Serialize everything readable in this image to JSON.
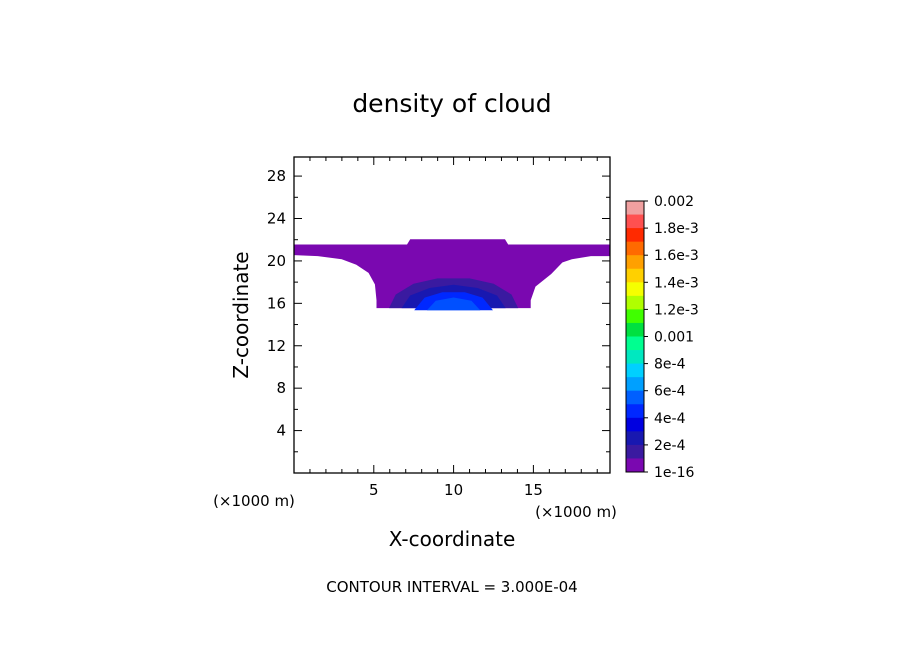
{
  "chart_data": {
    "type": "contour",
    "title": "density of cloud",
    "xlabel": "X-coordinate",
    "ylabel": "Z-coordinate",
    "x_unit": "(×1000 m)",
    "y_unit": "(×1000 m)",
    "xlim": [
      0,
      19.8
    ],
    "ylim": [
      0,
      29.8
    ],
    "x_ticks": [
      5,
      10,
      15
    ],
    "y_ticks": [
      4,
      8,
      12,
      16,
      20,
      24,
      28
    ],
    "footer": "CONTOUR INTERVAL = 3.000E-04",
    "colorbar": {
      "labels": [
        "0.002",
        "1.8e-3",
        "1.6e-3",
        "1.4e-3",
        "1.2e-3",
        "0.001",
        "8e-4",
        "6e-4",
        "4e-4",
        "2e-4",
        "1e-16"
      ],
      "colors": [
        "#f0a0a0",
        "#ff5050",
        "#ff2a00",
        "#ff6a00",
        "#ffa000",
        "#ffd000",
        "#f5ff00",
        "#b0ff00",
        "#40ff00",
        "#00e040",
        "#00ff90",
        "#00e8c0",
        "#00d0ff",
        "#00a0ff",
        "#0060ff",
        "#0028ff",
        "#0000e0",
        "#1818b0",
        "#3a1aa0",
        "#7a08b0"
      ]
    },
    "regions": [
      {
        "name": "outer",
        "level": "1e-16",
        "color": "#7a08b0",
        "outline": [
          [
            0,
            21.5
          ],
          [
            7.1,
            21.5
          ],
          [
            7.3,
            22.0
          ],
          [
            13.2,
            22.0
          ],
          [
            13.4,
            21.5
          ],
          [
            19.8,
            21.5
          ],
          [
            19.8,
            20.5
          ],
          [
            18.6,
            20.5
          ],
          [
            17.4,
            20.2
          ],
          [
            16.8,
            19.9
          ],
          [
            16.1,
            18.8
          ],
          [
            15.1,
            17.6
          ],
          [
            14.8,
            16.3
          ],
          [
            14.8,
            15.6
          ],
          [
            5.2,
            15.6
          ],
          [
            5.2,
            16.3
          ],
          [
            5.1,
            17.8
          ],
          [
            4.7,
            18.9
          ],
          [
            3.9,
            19.7
          ],
          [
            3.0,
            20.2
          ],
          [
            1.5,
            20.5
          ],
          [
            0,
            20.6
          ]
        ]
      },
      {
        "name": "inner-1",
        "level": "2e-4",
        "color": "#3a1aa0",
        "outline": [
          [
            6.0,
            15.6
          ],
          [
            6.4,
            16.8
          ],
          [
            7.5,
            17.8
          ],
          [
            9.0,
            18.3
          ],
          [
            11.0,
            18.3
          ],
          [
            12.5,
            17.8
          ],
          [
            13.6,
            16.8
          ],
          [
            14.0,
            15.6
          ]
        ]
      },
      {
        "name": "inner-2",
        "level": "3e-4",
        "color": "#1818b0",
        "outline": [
          [
            6.8,
            15.6
          ],
          [
            7.3,
            16.7
          ],
          [
            8.5,
            17.4
          ],
          [
            10.0,
            17.7
          ],
          [
            11.5,
            17.4
          ],
          [
            12.7,
            16.7
          ],
          [
            13.2,
            15.6
          ]
        ]
      },
      {
        "name": "inner-3",
        "level": "4e-4",
        "color": "#0028ff",
        "outline": [
          [
            7.6,
            15.4
          ],
          [
            8.2,
            16.5
          ],
          [
            9.3,
            17.0
          ],
          [
            10.7,
            17.0
          ],
          [
            11.8,
            16.5
          ],
          [
            12.4,
            15.4
          ]
        ]
      },
      {
        "name": "inner-4",
        "level": "5e-4",
        "color": "#0050ff",
        "outline": [
          [
            8.4,
            15.4
          ],
          [
            8.9,
            16.2
          ],
          [
            10.0,
            16.5
          ],
          [
            11.1,
            16.2
          ],
          [
            11.6,
            15.4
          ]
        ]
      }
    ]
  }
}
